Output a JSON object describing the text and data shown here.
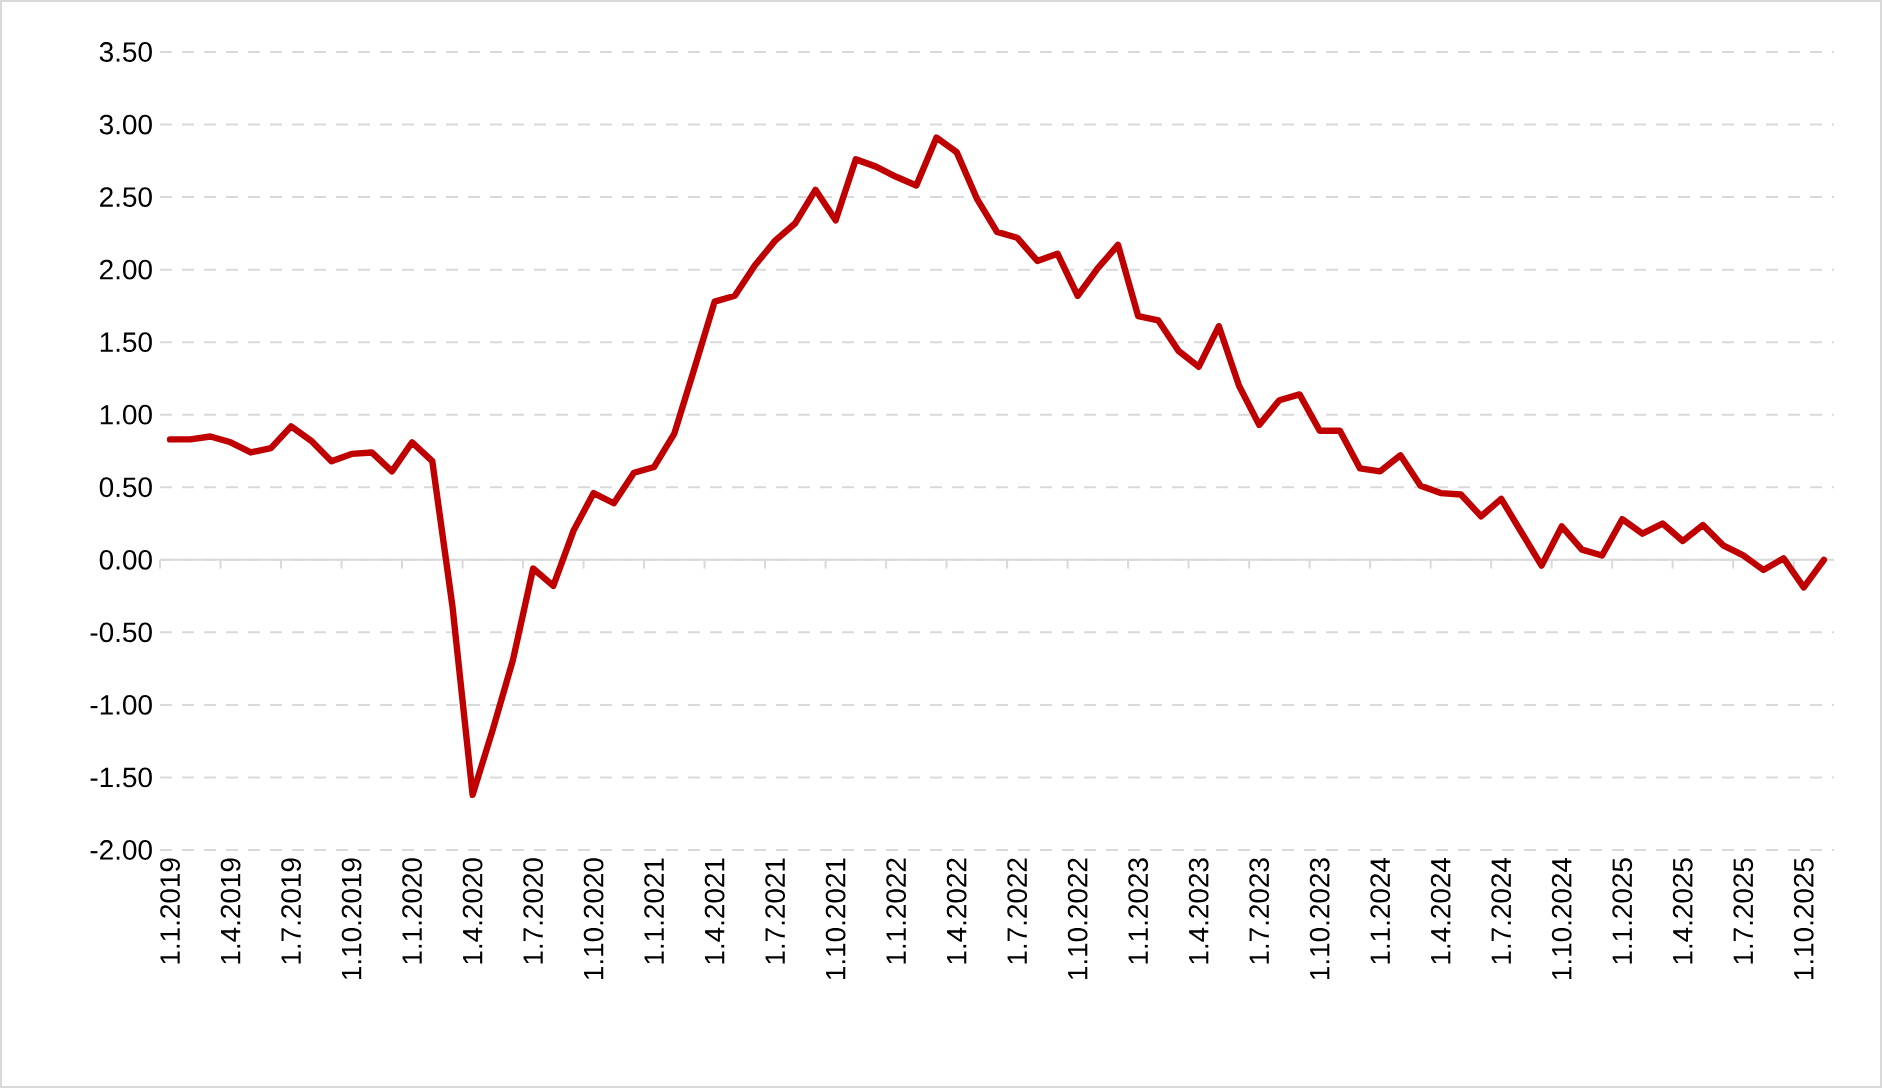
{
  "chart_data": {
    "type": "line",
    "categories": [
      "1.1.2019",
      null,
      null,
      "1.4.2019",
      null,
      null,
      "1.7.2019",
      null,
      null,
      "1.10.2019",
      null,
      null,
      "1.1.2020",
      null,
      null,
      "1.4.2020",
      null,
      null,
      "1.7.2020",
      null,
      null,
      "1.10.2020",
      null,
      null,
      "1.1.2021",
      null,
      null,
      "1.4.2021",
      null,
      null,
      "1.7.2021",
      null,
      null,
      "1.10.2021",
      null,
      null,
      "1.1.2022",
      null,
      null,
      "1.4.2022",
      null,
      null,
      "1.7.2022",
      null,
      null,
      "1.10.2022",
      null,
      null,
      "1.1.2023",
      null,
      null,
      "1.4.2023",
      null,
      null,
      "1.7.2023",
      null,
      null,
      "1.10.2023",
      null,
      null,
      "1.1.2024",
      null,
      null,
      "1.4.2024",
      null,
      null,
      "1.7.2024",
      null,
      null,
      "1.10.2024",
      null,
      null,
      "1.1.2025",
      null,
      null,
      "1.4.2025",
      null,
      null,
      "1.7.2025",
      null,
      null,
      "1.10.2025",
      null
    ],
    "series": [
      {
        "color": "#c00000",
        "values": [
          0.83,
          0.83,
          0.85,
          0.81,
          0.74,
          0.77,
          0.92,
          0.82,
          0.68,
          0.73,
          0.74,
          0.61,
          0.81,
          0.68,
          -0.32,
          -1.62,
          -1.17,
          -0.69,
          -0.06,
          -0.18,
          0.2,
          0.46,
          0.39,
          0.6,
          0.64,
          0.87,
          1.32,
          1.78,
          1.82,
          2.03,
          2.2,
          2.32,
          2.55,
          2.34,
          2.76,
          2.71,
          2.64,
          2.58,
          2.91,
          2.81,
          2.49,
          2.26,
          2.22,
          2.06,
          2.11,
          1.82,
          2.01,
          2.17,
          1.68,
          1.65,
          1.44,
          1.33,
          1.61,
          1.2,
          0.93,
          1.1,
          1.14,
          0.89,
          0.89,
          0.63,
          0.61,
          0.72,
          0.51,
          0.46,
          0.45,
          0.3,
          0.42,
          0.19,
          -0.04,
          0.23,
          0.07,
          0.03,
          0.28,
          0.18,
          0.25,
          0.13,
          0.24,
          0.1,
          0.03,
          -0.07,
          0.01,
          -0.19,
          0.0
        ]
      }
    ],
    "ylim": [
      -2,
      3.5
    ],
    "yticks": [
      {
        "value": -2,
        "label": "-2.00"
      },
      {
        "value": -1.5,
        "label": "-1.50"
      },
      {
        "value": -1,
        "label": "-1.00"
      },
      {
        "value": -0.5,
        "label": "-0.50"
      },
      {
        "value": 0,
        "label": "0.00"
      },
      {
        "value": 0.5,
        "label": "0.50"
      },
      {
        "value": 1,
        "label": "1.00"
      },
      {
        "value": 1.5,
        "label": "1.50"
      },
      {
        "value": 2,
        "label": "2.00"
      },
      {
        "value": 2.5,
        "label": "2.50"
      },
      {
        "value": 3,
        "label": "3.00"
      },
      {
        "value": 3.5,
        "label": "3.50"
      }
    ],
    "grid": "y",
    "marker": "none",
    "line_style": "solid"
  }
}
